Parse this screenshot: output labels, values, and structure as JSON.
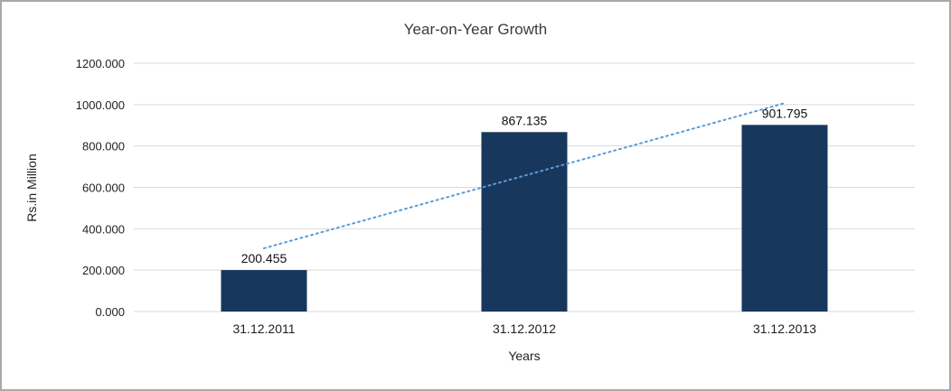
{
  "chart_data": {
    "type": "bar",
    "title": "Year-on-Year Growth",
    "xlabel": "Years",
    "ylabel": "Rs.in Million",
    "categories": [
      "31.12.2011",
      "31.12.2012",
      "31.12.2013"
    ],
    "values": [
      200.455,
      867.135,
      901.795
    ],
    "data_labels": [
      "200.455",
      "867.135",
      "901.795"
    ],
    "ylim": [
      0,
      1200
    ],
    "yticks": [
      0,
      200,
      400,
      600,
      800,
      1000,
      1200
    ],
    "ytick_labels": [
      "0.000",
      "200.000",
      "400.000",
      "600.000",
      "800.000",
      "1000.000",
      "1200.000"
    ],
    "grid": true,
    "legend_position": "none",
    "bar_color": "#17375d",
    "gridline_color": "#d9d9d9",
    "trendline": {
      "type": "linear",
      "style": "dotted",
      "color": "#5b9bd5"
    }
  }
}
